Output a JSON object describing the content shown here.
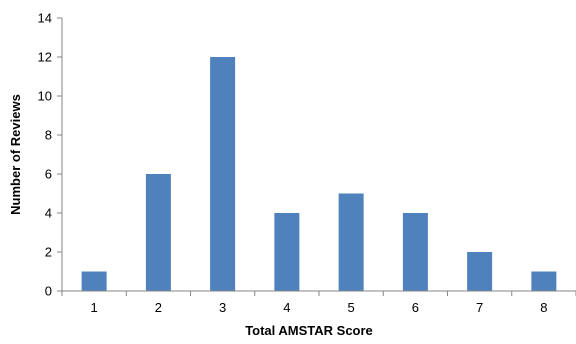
{
  "chart_data": {
    "type": "bar",
    "title": "",
    "xlabel": "Total AMSTAR Score",
    "ylabel": "Number of Reviews",
    "categories": [
      "1",
      "2",
      "3",
      "4",
      "5",
      "6",
      "7",
      "8"
    ],
    "values": [
      1,
      6,
      12,
      4,
      5,
      4,
      2,
      1
    ],
    "ylim": [
      0,
      14
    ],
    "yticks": [
      "0",
      "2",
      "4",
      "6",
      "8",
      "10",
      "12",
      "14"
    ],
    "grid": false,
    "legend": "none",
    "colors": {
      "bar": "#4f81bd",
      "axis": "#868686",
      "text": "#000000"
    }
  }
}
